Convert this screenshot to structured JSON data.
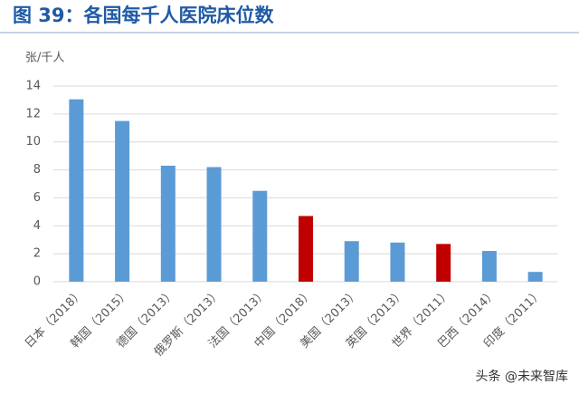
{
  "chart_data": {
    "type": "bar",
    "title": "图 39：各国每千人医院床位数",
    "y_label": "张/千人",
    "categories": [
      "日本（2018）",
      "韩国（2015）",
      "德国（2013）",
      "俄罗斯（2013）",
      "法国（2013）",
      "中国（2018）",
      "美国（2013）",
      "英国（2013）",
      "世界（2011）",
      "巴西（2014）",
      "印度（2011）"
    ],
    "values": [
      13.05,
      11.5,
      8.3,
      8.2,
      6.5,
      4.7,
      2.9,
      2.8,
      2.7,
      2.2,
      0.7
    ],
    "colors": [
      "#5b9bd5",
      "#5b9bd5",
      "#5b9bd5",
      "#5b9bd5",
      "#5b9bd5",
      "#c00000",
      "#5b9bd5",
      "#5b9bd5",
      "#c00000",
      "#5b9bd5",
      "#5b9bd5"
    ],
    "ylim": [
      0,
      14
    ],
    "yticks": [
      0,
      2,
      4,
      6,
      8,
      10,
      12,
      14
    ],
    "grid": true,
    "watermark": "头条 @未来智库"
  }
}
